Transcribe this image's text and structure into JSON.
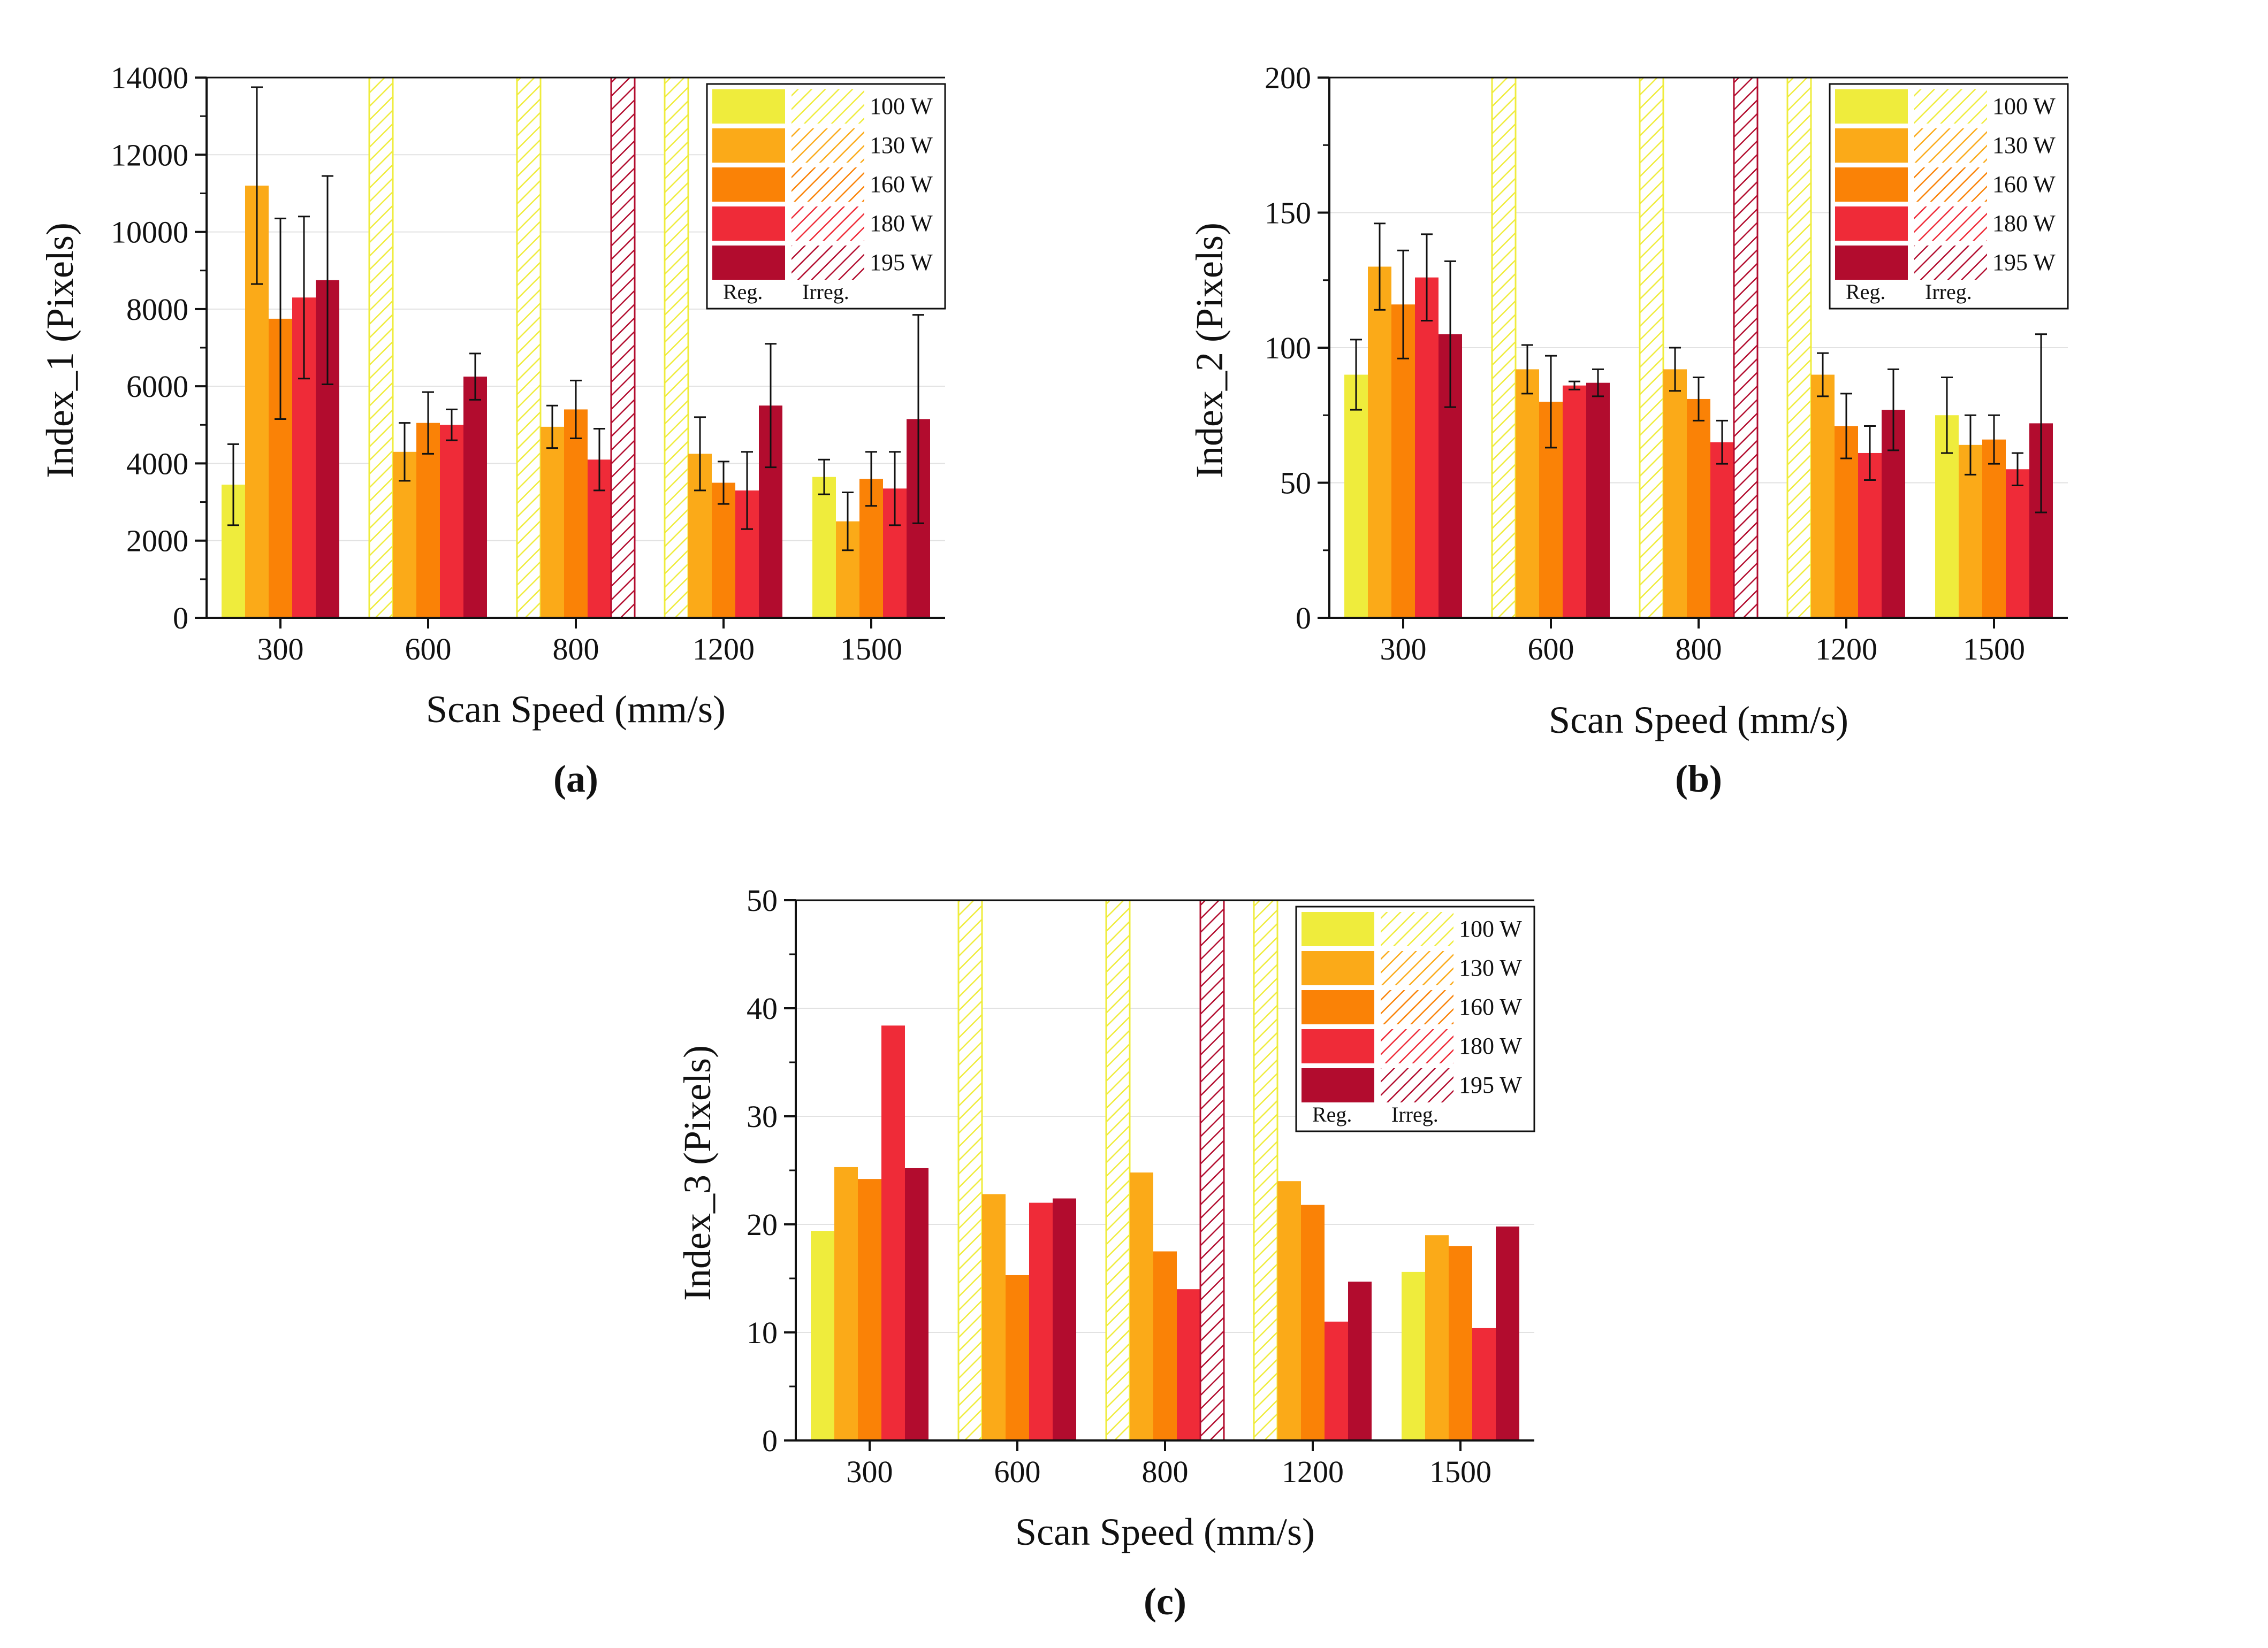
{
  "figure": {
    "series_colors": {
      "100 W": "#EFEC3C",
      "130 W": "#FBAA18",
      "160 W": "#FA8206",
      "180 W": "#EF2B38",
      "195 W": "#B20C2E"
    },
    "legend": {
      "labels": [
        "100 W",
        "130 W",
        "160 W",
        "180 W",
        "195 W"
      ],
      "regular_label": "Reg.",
      "irregular_label": "Irreg."
    }
  },
  "chart_data": [
    {
      "type": "bar",
      "panel_label": "(a)",
      "title": "",
      "xlabel": "Scan Speed (mm/s)",
      "ylabel": "Index_1 (Pixels)",
      "ylim": [
        0,
        14000
      ],
      "yticks": [
        0,
        2000,
        4000,
        6000,
        8000,
        10000,
        12000,
        14000
      ],
      "categories": [
        "300",
        "600",
        "800",
        "1200",
        "1500"
      ],
      "grid": true,
      "legend_position": "top-right",
      "series": [
        {
          "name": "100 W",
          "values": [
            3450,
            14000,
            14000,
            14000,
            3650
          ],
          "errors": [
            1050,
            null,
            null,
            null,
            450
          ],
          "irregular": [
            false,
            true,
            true,
            true,
            false
          ]
        },
        {
          "name": "130 W",
          "values": [
            11200,
            4300,
            4950,
            4250,
            2500
          ],
          "errors": [
            2550,
            750,
            550,
            950,
            750
          ],
          "irregular": [
            false,
            false,
            false,
            false,
            false
          ]
        },
        {
          "name": "160 W",
          "values": [
            7750,
            5050,
            5400,
            3500,
            3600
          ],
          "errors": [
            2600,
            800,
            750,
            550,
            700
          ],
          "irregular": [
            false,
            false,
            false,
            false,
            false
          ]
        },
        {
          "name": "180 W",
          "values": [
            8300,
            5000,
            4100,
            3300,
            3350
          ],
          "errors": [
            2100,
            400,
            800,
            1000,
            950
          ],
          "irregular": [
            false,
            false,
            false,
            false,
            false
          ]
        },
        {
          "name": "195 W",
          "values": [
            8750,
            6250,
            14000,
            5500,
            5150
          ],
          "errors": [
            2700,
            600,
            null,
            1600,
            2700
          ],
          "irregular": [
            false,
            false,
            true,
            false,
            false
          ]
        }
      ]
    },
    {
      "type": "bar",
      "panel_label": "(b)",
      "title": "",
      "xlabel": "Scan Speed (mm/s)",
      "ylabel": "Index_2 (Pixels)",
      "ylim": [
        0,
        200
      ],
      "yticks": [
        0,
        50,
        100,
        150,
        200
      ],
      "categories": [
        "300",
        "600",
        "800",
        "1200",
        "1500"
      ],
      "grid": true,
      "legend_position": "top-right",
      "series": [
        {
          "name": "100 W",
          "values": [
            90,
            200,
            200,
            200,
            75
          ],
          "errors": [
            13,
            null,
            null,
            null,
            14
          ],
          "irregular": [
            false,
            true,
            true,
            true,
            false
          ]
        },
        {
          "name": "130 W",
          "values": [
            130,
            92,
            92,
            90,
            64
          ],
          "errors": [
            16,
            9,
            8,
            8,
            11
          ],
          "irregular": [
            false,
            false,
            false,
            false,
            false
          ]
        },
        {
          "name": "160 W",
          "values": [
            116,
            80,
            81,
            71,
            66
          ],
          "errors": [
            20,
            17,
            8,
            12,
            9
          ],
          "irregular": [
            false,
            false,
            false,
            false,
            false
          ]
        },
        {
          "name": "180 W",
          "values": [
            126,
            86,
            65,
            61,
            55
          ],
          "errors": [
            16,
            1.5,
            8,
            10,
            6
          ],
          "irregular": [
            false,
            false,
            false,
            false,
            false
          ]
        },
        {
          "name": "195 W",
          "values": [
            105,
            87,
            200,
            77,
            72
          ],
          "errors": [
            27,
            5,
            null,
            15,
            33
          ],
          "irregular": [
            false,
            false,
            true,
            false,
            false
          ]
        }
      ]
    },
    {
      "type": "bar",
      "panel_label": "(c)",
      "title": "",
      "xlabel": "Scan Speed (mm/s)",
      "ylabel": "Index_3 (Pixels)",
      "ylim": [
        0,
        50
      ],
      "yticks": [
        0,
        10,
        20,
        30,
        40,
        50
      ],
      "categories": [
        "300",
        "600",
        "800",
        "1200",
        "1500"
      ],
      "grid": true,
      "legend_position": "top-right",
      "series": [
        {
          "name": "100 W",
          "values": [
            19.4,
            50,
            50,
            50,
            15.6
          ],
          "errors": [
            null,
            null,
            null,
            null,
            null
          ],
          "irregular": [
            false,
            true,
            true,
            true,
            false
          ]
        },
        {
          "name": "130 W",
          "values": [
            25.3,
            22.8,
            24.8,
            24.0,
            19.0
          ],
          "errors": [
            null,
            null,
            null,
            null,
            null
          ],
          "irregular": [
            false,
            false,
            false,
            false,
            false
          ]
        },
        {
          "name": "160 W",
          "values": [
            24.2,
            15.3,
            17.5,
            21.8,
            18.0
          ],
          "errors": [
            null,
            null,
            null,
            null,
            null
          ],
          "irregular": [
            false,
            false,
            false,
            false,
            false
          ]
        },
        {
          "name": "180 W",
          "values": [
            38.4,
            22.0,
            14.0,
            11.0,
            10.4
          ],
          "errors": [
            null,
            null,
            null,
            null,
            null
          ],
          "irregular": [
            false,
            false,
            false,
            false,
            false
          ]
        },
        {
          "name": "195 W",
          "values": [
            25.2,
            22.4,
            50,
            14.7,
            19.8
          ],
          "errors": [
            null,
            null,
            null,
            null,
            null
          ],
          "irregular": [
            false,
            false,
            true,
            false,
            false
          ]
        }
      ]
    }
  ]
}
